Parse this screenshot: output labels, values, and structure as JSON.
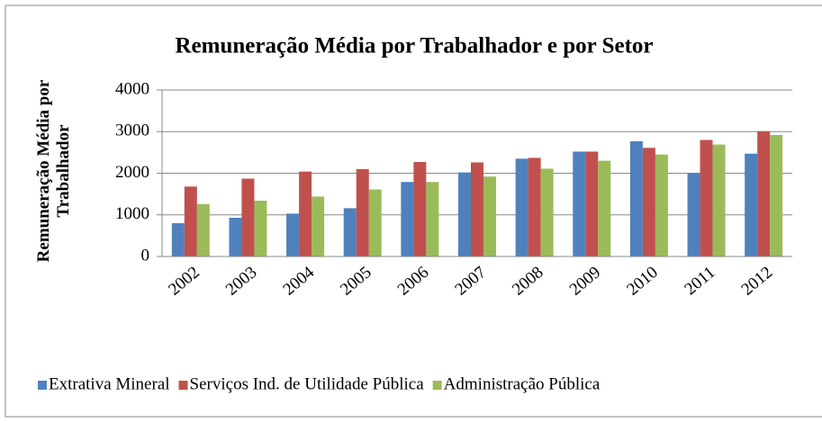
{
  "chart_data": {
    "type": "bar",
    "title": "Remuneração Média por Trabalhador e por Setor",
    "y_label": "Remuneração Média por Trabalhador",
    "categories": [
      "2002",
      "2003",
      "2004",
      "2005",
      "2006",
      "2007",
      "2008",
      "2009",
      "2010",
      "2011",
      "2012"
    ],
    "series": [
      {
        "name": "Extrativa Mineral",
        "color": "#4f81bd",
        "values": [
          800,
          930,
          1030,
          1160,
          1790,
          2020,
          2350,
          2520,
          2770,
          2010,
          2470
        ]
      },
      {
        "name": "Serviços Ind. de Utilidade Pública",
        "color": "#c0504d",
        "values": [
          1680,
          1870,
          2040,
          2100,
          2270,
          2260,
          2370,
          2520,
          2610,
          2800,
          3010
        ]
      },
      {
        "name": "Administração Pública",
        "color": "#9bbb59",
        "values": [
          1260,
          1340,
          1440,
          1610,
          1790,
          1920,
          2110,
          2300,
          2450,
          2690,
          2920
        ]
      }
    ],
    "ylim": [
      0,
      4000
    ],
    "yticks": [
      0,
      1000,
      2000,
      3000,
      4000
    ],
    "grid": true,
    "legend": "bottom"
  }
}
